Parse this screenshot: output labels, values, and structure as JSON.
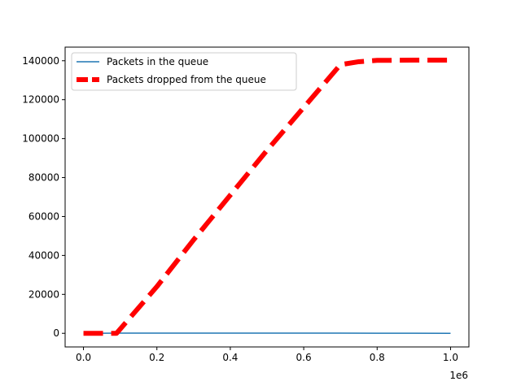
{
  "chart_data": {
    "type": "line",
    "title": "",
    "xlabel": "",
    "ylabel": "",
    "x_offset_label": "1e6",
    "xlim": [
      -0.05,
      1.05
    ],
    "ylim": [
      -7000,
      147000
    ],
    "x_ticks": [
      0.0,
      0.2,
      0.4,
      0.6,
      0.8,
      1.0
    ],
    "x_tick_labels": [
      "0.0",
      "0.2",
      "0.4",
      "0.6",
      "0.8",
      "1.0"
    ],
    "y_ticks": [
      0,
      20000,
      40000,
      60000,
      80000,
      100000,
      120000,
      140000
    ],
    "y_tick_labels": [
      "0",
      "20000",
      "40000",
      "60000",
      "80000",
      "100000",
      "120000",
      "140000"
    ],
    "grid": false,
    "legend_position": "upper-left",
    "series": [
      {
        "name": "Packets in the queue",
        "color": "#1f77b4",
        "style": "solid",
        "x": [
          0.0,
          0.1,
          0.2,
          0.3,
          0.4,
          0.5,
          0.6,
          0.7,
          0.8,
          0.9,
          1.0
        ],
        "y": [
          0,
          100,
          100,
          100,
          100,
          100,
          100,
          100,
          50,
          50,
          0
        ]
      },
      {
        "name": "Packets dropped from the queue",
        "color": "#ff0000",
        "style": "dashed",
        "x": [
          0.0,
          0.09,
          0.2,
          0.3,
          0.4,
          0.5,
          0.6,
          0.7,
          0.75,
          0.8,
          0.9,
          1.0
        ],
        "y": [
          0,
          0,
          24000,
          48000,
          71000,
          94000,
          116000,
          138000,
          139500,
          140200,
          140300,
          140300
        ]
      }
    ]
  }
}
